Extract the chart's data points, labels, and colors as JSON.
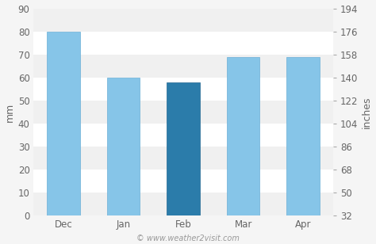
{
  "categories": [
    "Dec",
    "Jan",
    "Feb",
    "Mar",
    "Apr"
  ],
  "values": [
    80,
    60,
    58,
    69,
    69
  ],
  "bar_colors": [
    "#86c5e8",
    "#86c5e8",
    "#2b7caa",
    "#86c5e8",
    "#86c5e8"
  ],
  "bar_edge_colors": [
    "#6aaed6",
    "#6aaed6",
    "#1d6590",
    "#6aaed6",
    "#6aaed6"
  ],
  "ylabel_left": "mm",
  "ylabel_right": "inches",
  "ylim_left": [
    0,
    90
  ],
  "yticks_left": [
    0,
    10,
    20,
    30,
    40,
    50,
    60,
    70,
    80,
    90
  ],
  "yticks_right": [
    32,
    50,
    68,
    86,
    104,
    122,
    140,
    158,
    176,
    194
  ],
  "background_color": "#f5f5f5",
  "band_color_light": "#f0f0f0",
  "band_color_white": "#ffffff",
  "footer_text": "© www.weather2visit.com",
  "footer_fontsize": 7,
  "axis_fontsize": 9,
  "tick_fontsize": 8.5,
  "bar_width": 0.55
}
